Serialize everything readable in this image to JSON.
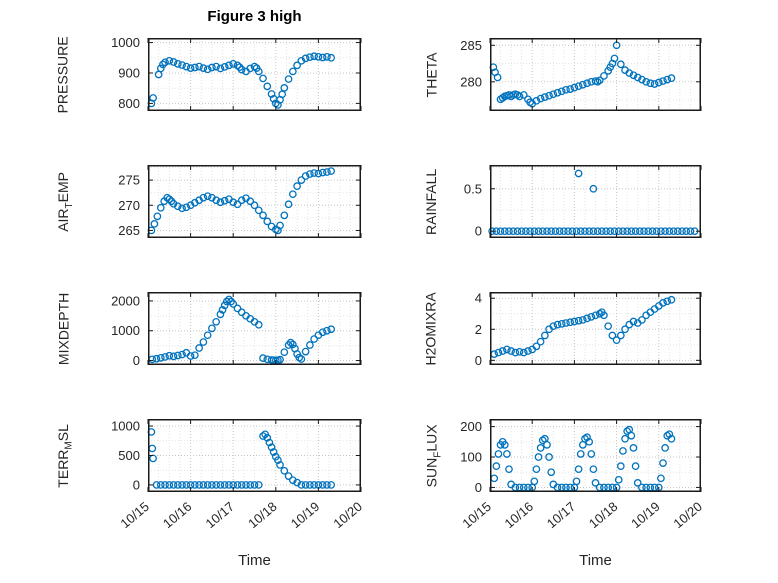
{
  "figure": {
    "title": "Figure 3 high",
    "xlabel": "Time"
  },
  "colors": {
    "accent": "#0072BD",
    "axis": "#1a1a1a",
    "text": "#262626",
    "grid_major": "#c6c6c6",
    "grid_minor": "#e4e4e4",
    "background": "#ffffff"
  },
  "xaxis": {
    "xlim": [
      0,
      5
    ],
    "ticks": [
      0,
      1,
      2,
      3,
      4,
      5
    ],
    "tick_labels": [
      "10/15",
      "10/16",
      "10/17",
      "10/18",
      "10/19",
      "10/20"
    ],
    "label": "Time"
  },
  "chart_data": [
    {
      "id": "pressure",
      "type": "scatter",
      "marker": "circle-open",
      "ylabel": {
        "pre": "PRESSURE",
        "sub": "",
        "post": ""
      },
      "yticks": [
        800,
        900,
        1000
      ],
      "ylim": [
        775,
        1015
      ],
      "show_x_labels": false,
      "x": [
        0.08,
        0.12,
        0.25,
        0.3,
        0.35,
        0.4,
        0.5,
        0.6,
        0.7,
        0.8,
        0.9,
        1.0,
        1.1,
        1.2,
        1.3,
        1.4,
        1.5,
        1.6,
        1.7,
        1.8,
        1.9,
        2.0,
        2.1,
        2.15,
        2.2,
        2.3,
        2.4,
        2.5,
        2.55,
        2.6,
        2.7,
        2.8,
        2.9,
        2.95,
        3.0,
        3.05,
        3.1,
        3.15,
        3.2,
        3.3,
        3.4,
        3.5,
        3.6,
        3.7,
        3.8,
        3.9,
        4.0,
        4.1,
        4.2,
        4.3
      ],
      "y": [
        800,
        818,
        895,
        915,
        928,
        935,
        940,
        936,
        930,
        926,
        921,
        916,
        918,
        921,
        916,
        912,
        918,
        921,
        915,
        920,
        925,
        930,
        925,
        919,
        911,
        905,
        915,
        921,
        916,
        905,
        882,
        856,
        831,
        815,
        800,
        795,
        812,
        830,
        851,
        880,
        905,
        925,
        940,
        948,
        952,
        955,
        953,
        951,
        953,
        950
      ]
    },
    {
      "id": "theta",
      "type": "scatter",
      "marker": "circle-open",
      "ylabel": {
        "pre": "THETA",
        "sub": "",
        "post": ""
      },
      "yticks": [
        280,
        285
      ],
      "ylim": [
        276,
        286
      ],
      "show_x_labels": false,
      "x": [
        0.08,
        0.12,
        0.18,
        0.25,
        0.3,
        0.35,
        0.4,
        0.45,
        0.5,
        0.55,
        0.6,
        0.65,
        0.7,
        0.8,
        0.9,
        0.95,
        1.0,
        1.1,
        1.2,
        1.3,
        1.4,
        1.5,
        1.6,
        1.7,
        1.8,
        1.9,
        2.0,
        2.1,
        2.2,
        2.3,
        2.4,
        2.5,
        2.55,
        2.6,
        2.7,
        2.8,
        2.85,
        2.9,
        2.95,
        3.0,
        3.1,
        3.2,
        3.3,
        3.4,
        3.5,
        3.6,
        3.7,
        3.8,
        3.9,
        4.0,
        4.1,
        4.2,
        4.3
      ],
      "y": [
        282.0,
        281.3,
        280.6,
        277.6,
        277.8,
        278.0,
        278.1,
        278.2,
        278.0,
        278.2,
        278.3,
        278.2,
        278.0,
        278.2,
        277.6,
        277.2,
        277.0,
        277.4,
        277.7,
        277.9,
        278.1,
        278.3,
        278.5,
        278.7,
        278.9,
        279.0,
        279.2,
        279.4,
        279.6,
        279.8,
        280.0,
        280.1,
        280.0,
        280.2,
        280.8,
        281.5,
        282.0,
        282.5,
        283.2,
        285.0,
        282.4,
        281.6,
        281.2,
        280.9,
        280.6,
        280.3,
        280.0,
        279.8,
        279.7,
        279.9,
        280.1,
        280.3,
        280.5
      ]
    },
    {
      "id": "airtemp",
      "type": "scatter",
      "marker": "circle-open",
      "ylabel": {
        "pre": "AIR",
        "sub": "T",
        "post": "EMP"
      },
      "yticks": [
        265,
        270,
        275
      ],
      "ylim": [
        263.5,
        278
      ],
      "show_x_labels": false,
      "x": [
        0.08,
        0.15,
        0.22,
        0.3,
        0.38,
        0.45,
        0.5,
        0.55,
        0.6,
        0.7,
        0.8,
        0.9,
        1.0,
        1.1,
        1.2,
        1.3,
        1.4,
        1.5,
        1.6,
        1.7,
        1.8,
        1.9,
        2.0,
        2.1,
        2.2,
        2.3,
        2.4,
        2.5,
        2.6,
        2.7,
        2.8,
        2.9,
        3.0,
        3.05,
        3.1,
        3.2,
        3.3,
        3.4,
        3.5,
        3.6,
        3.7,
        3.8,
        3.9,
        4.0,
        4.1,
        4.2,
        4.3
      ],
      "y": [
        265.0,
        266.3,
        267.8,
        269.5,
        270.8,
        271.5,
        271.2,
        270.8,
        270.3,
        269.8,
        269.4,
        269.6,
        270.0,
        270.5,
        271.0,
        271.5,
        271.8,
        271.5,
        271.0,
        270.6,
        270.9,
        271.2,
        270.6,
        270.2,
        271.0,
        271.4,
        270.8,
        270.0,
        269.0,
        268.0,
        266.8,
        265.8,
        265.2,
        265.0,
        266.0,
        268.0,
        270.2,
        272.2,
        273.8,
        275.0,
        275.8,
        276.2,
        276.4,
        276.3,
        276.5,
        276.6,
        276.8
      ]
    },
    {
      "id": "rainfall",
      "type": "scatter",
      "marker": "circle-open",
      "ylabel": {
        "pre": "RAINFALL",
        "sub": "",
        "post": ""
      },
      "yticks": [
        0,
        0.5
      ],
      "ylim": [
        -0.08,
        0.78
      ],
      "show_x_labels": false,
      "x": [
        0.05,
        0.15,
        0.25,
        0.35,
        0.45,
        0.55,
        0.65,
        0.75,
        0.85,
        0.95,
        1.05,
        1.15,
        1.25,
        1.35,
        1.45,
        1.55,
        1.65,
        1.75,
        1.85,
        1.95,
        2.05,
        2.15,
        2.25,
        2.35,
        2.45,
        2.55,
        2.65,
        2.75,
        2.85,
        2.95,
        3.05,
        3.15,
        3.25,
        3.35,
        3.45,
        3.55,
        3.65,
        3.75,
        3.85,
        3.95,
        4.05,
        4.15,
        4.25,
        4.35,
        4.45,
        4.55,
        4.65,
        4.75,
        4.85,
        2.1,
        2.45
      ],
      "y": [
        0,
        0,
        0,
        0,
        0,
        0,
        0,
        0,
        0,
        0,
        0,
        0,
        0,
        0,
        0,
        0,
        0,
        0,
        0,
        0,
        0,
        0,
        0,
        0,
        0,
        0,
        0,
        0,
        0,
        0,
        0,
        0,
        0,
        0,
        0,
        0,
        0,
        0,
        0,
        0,
        0,
        0,
        0,
        0,
        0,
        0,
        0,
        0,
        0,
        0.68,
        0.5
      ]
    },
    {
      "id": "mixdepth",
      "type": "scatter",
      "marker": "circle-open",
      "ylabel": {
        "pre": "MIXDEPTH",
        "sub": "",
        "post": ""
      },
      "yticks": [
        0,
        1000,
        2000
      ],
      "ylim": [
        -150,
        2300
      ],
      "show_x_labels": false,
      "x": [
        0.1,
        0.2,
        0.3,
        0.4,
        0.5,
        0.6,
        0.7,
        0.8,
        0.9,
        1.0,
        1.1,
        1.2,
        1.3,
        1.4,
        1.5,
        1.6,
        1.7,
        1.75,
        1.8,
        1.85,
        1.9,
        1.95,
        2.0,
        2.1,
        2.2,
        2.3,
        2.4,
        2.5,
        2.6,
        2.7,
        2.8,
        2.9,
        2.95,
        3.0,
        3.05,
        3.1,
        3.2,
        3.3,
        3.35,
        3.4,
        3.45,
        3.5,
        3.55,
        3.6,
        3.7,
        3.8,
        3.9,
        4.0,
        4.1,
        4.2,
        4.3
      ],
      "y": [
        40,
        60,
        90,
        120,
        160,
        140,
        170,
        200,
        260,
        150,
        180,
        420,
        620,
        850,
        1080,
        1300,
        1550,
        1700,
        1850,
        1980,
        2050,
        1980,
        1900,
        1750,
        1620,
        1500,
        1400,
        1300,
        1200,
        80,
        40,
        20,
        10,
        5,
        10,
        30,
        280,
        520,
        600,
        540,
        400,
        220,
        100,
        50,
        300,
        520,
        720,
        850,
        950,
        1000,
        1050
      ]
    },
    {
      "id": "h2omixra",
      "type": "scatter",
      "marker": "circle-open",
      "ylabel": {
        "pre": "H2OMIXRA",
        "sub": "",
        "post": ""
      },
      "yticks": [
        0,
        2,
        4
      ],
      "ylim": [
        -0.3,
        4.4
      ],
      "show_x_labels": false,
      "x": [
        0.1,
        0.2,
        0.3,
        0.4,
        0.5,
        0.6,
        0.7,
        0.8,
        0.9,
        1.0,
        1.1,
        1.2,
        1.3,
        1.4,
        1.5,
        1.6,
        1.7,
        1.8,
        1.9,
        2.0,
        2.1,
        2.2,
        2.3,
        2.4,
        2.5,
        2.6,
        2.65,
        2.7,
        2.8,
        2.9,
        3.0,
        3.1,
        3.2,
        3.3,
        3.4,
        3.5,
        3.6,
        3.7,
        3.8,
        3.9,
        4.0,
        4.1,
        4.2,
        4.3
      ],
      "y": [
        0.4,
        0.5,
        0.6,
        0.7,
        0.6,
        0.5,
        0.55,
        0.5,
        0.6,
        0.7,
        0.9,
        1.2,
        1.6,
        2.0,
        2.2,
        2.3,
        2.35,
        2.4,
        2.45,
        2.5,
        2.55,
        2.6,
        2.7,
        2.8,
        2.9,
        3.0,
        3.1,
        2.9,
        2.2,
        1.6,
        1.3,
        1.6,
        2.0,
        2.3,
        2.5,
        2.4,
        2.6,
        2.9,
        3.1,
        3.3,
        3.5,
        3.7,
        3.8,
        3.9
      ]
    },
    {
      "id": "terrmsl",
      "type": "scatter",
      "marker": "circle-open",
      "ylabel": {
        "pre": "TERR",
        "sub": "M",
        "post": "SL"
      },
      "yticks": [
        0,
        500,
        1000
      ],
      "ylim": [
        -120,
        1120
      ],
      "show_x_labels": true,
      "x": [
        0.08,
        0.1,
        0.12,
        0.2,
        0.3,
        0.4,
        0.5,
        0.6,
        0.7,
        0.8,
        0.9,
        1.0,
        1.1,
        1.2,
        1.3,
        1.4,
        1.5,
        1.6,
        1.7,
        1.8,
        1.9,
        2.0,
        2.1,
        2.2,
        2.3,
        2.4,
        2.5,
        2.6,
        2.7,
        2.75,
        2.8,
        2.85,
        2.9,
        2.95,
        3.0,
        3.05,
        3.1,
        3.2,
        3.3,
        3.4,
        3.5,
        3.6,
        3.7,
        3.8,
        3.9,
        4.0,
        4.1,
        4.2,
        4.3
      ],
      "y": [
        900,
        620,
        450,
        0,
        0,
        0,
        0,
        0,
        0,
        0,
        0,
        0,
        0,
        0,
        0,
        0,
        0,
        0,
        0,
        0,
        0,
        0,
        0,
        0,
        0,
        0,
        0,
        0,
        830,
        860,
        800,
        720,
        640,
        560,
        480,
        420,
        340,
        240,
        150,
        80,
        40,
        0,
        0,
        0,
        0,
        0,
        0,
        0,
        0
      ]
    },
    {
      "id": "sunflux",
      "type": "scatter",
      "marker": "circle-open",
      "ylabel": {
        "pre": "SUN",
        "sub": "F",
        "post": "LUX"
      },
      "yticks": [
        0,
        100,
        200
      ],
      "ylim": [
        -15,
        225
      ],
      "show_x_labels": true,
      "x": [
        0.1,
        0.15,
        0.2,
        0.25,
        0.3,
        0.35,
        0.4,
        0.45,
        0.5,
        0.6,
        0.7,
        0.8,
        0.9,
        1.0,
        1.05,
        1.1,
        1.15,
        1.2,
        1.25,
        1.3,
        1.35,
        1.4,
        1.45,
        1.5,
        1.6,
        1.7,
        1.8,
        1.9,
        2.0,
        2.05,
        2.1,
        2.15,
        2.2,
        2.25,
        2.3,
        2.35,
        2.4,
        2.45,
        2.5,
        2.6,
        2.7,
        2.8,
        2.9,
        3.0,
        3.05,
        3.1,
        3.15,
        3.2,
        3.25,
        3.3,
        3.35,
        3.4,
        3.45,
        3.5,
        3.6,
        3.7,
        3.8,
        3.9,
        4.0,
        4.05,
        4.1,
        4.15,
        4.2,
        4.25,
        4.3
      ],
      "y": [
        30,
        70,
        110,
        140,
        150,
        140,
        110,
        60,
        10,
        0,
        0,
        0,
        0,
        0,
        20,
        60,
        100,
        130,
        155,
        160,
        140,
        100,
        50,
        10,
        0,
        0,
        0,
        0,
        0,
        20,
        60,
        110,
        140,
        160,
        165,
        150,
        110,
        60,
        15,
        0,
        0,
        0,
        0,
        0,
        25,
        70,
        120,
        160,
        185,
        190,
        170,
        130,
        70,
        15,
        0,
        0,
        0,
        0,
        0,
        30,
        80,
        130,
        170,
        175,
        160
      ]
    }
  ]
}
